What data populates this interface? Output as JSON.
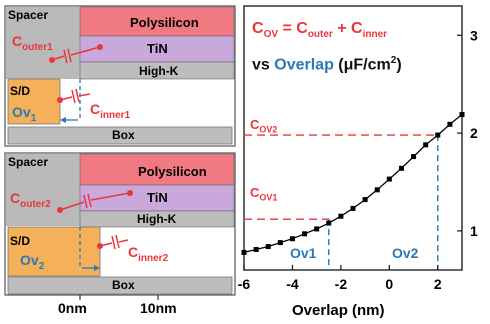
{
  "schematic": {
    "top": {
      "spacer": "Spacer",
      "polysilicon": "Polysilicon",
      "tin": "TiN",
      "highk": "High-K",
      "sd": "S/D",
      "box": "Box",
      "c_outer": "C",
      "c_outer_sub": "outer1",
      "c_inner": "C",
      "c_inner_sub": "inner1",
      "ov": "Ov",
      "ov_sub": "1"
    },
    "bottom": {
      "spacer": "Spacer",
      "polysilicon": "Polysilicon",
      "tin": "TiN",
      "highk": "High-K",
      "sd": "S/D",
      "box": "Box",
      "c_outer": "C",
      "c_outer_sub": "outer2",
      "c_inner": "C",
      "c_inner_sub": "inner2",
      "ov": "Ov",
      "ov_sub": "2"
    },
    "xticks": [
      "0nm",
      "10nm"
    ]
  },
  "chart_data": {
    "type": "line",
    "title_eq": {
      "c1": "C",
      "s1": "OV",
      "eq": " = ",
      "c2": "C",
      "s2": "outer",
      "plus": " + ",
      "c3": "C",
      "s3": "inner"
    },
    "title_line2": {
      "pre": "vs ",
      "mid": "Overlap",
      "post": " (μF/cm",
      "sup": "2",
      "end": ")"
    },
    "xlabel": "Overlap (nm)",
    "xlim": [
      -6,
      3
    ],
    "ylim": [
      0.6,
      3.3
    ],
    "xticks": [
      -6,
      -4,
      -2,
      0,
      2
    ],
    "xtick_labels": [
      "-6",
      "-4",
      "-2",
      "0",
      "2"
    ],
    "yticks": [
      1,
      2,
      3
    ],
    "ytick_labels": [
      "1",
      "2",
      "3"
    ],
    "series": [
      {
        "x": [
          -6,
          -5.5,
          -5,
          -4.5,
          -4,
          -3.5,
          -3,
          -2.5,
          -2,
          -1.5,
          -1,
          -0.5,
          0,
          0.5,
          1,
          1.5,
          2,
          2.5,
          3
        ],
        "y": [
          0.78,
          0.81,
          0.84,
          0.88,
          0.92,
          0.97,
          1.02,
          1.08,
          1.15,
          1.23,
          1.32,
          1.42,
          1.53,
          1.64,
          1.76,
          1.88,
          1.98,
          2.09,
          2.19
        ]
      }
    ],
    "annotations": {
      "cov1": {
        "c": "C",
        "sub": "OV1",
        "x": -2.5,
        "y": 1.12
      },
      "cov2": {
        "c": "C",
        "sub": "OV2",
        "x": 2,
        "y": 1.98
      },
      "ov1": "Ov1",
      "ov2": "Ov2"
    },
    "colors": {
      "red": "#e8363c",
      "blue": "#1f78b4",
      "title_blue": "#2a7ab8"
    }
  }
}
